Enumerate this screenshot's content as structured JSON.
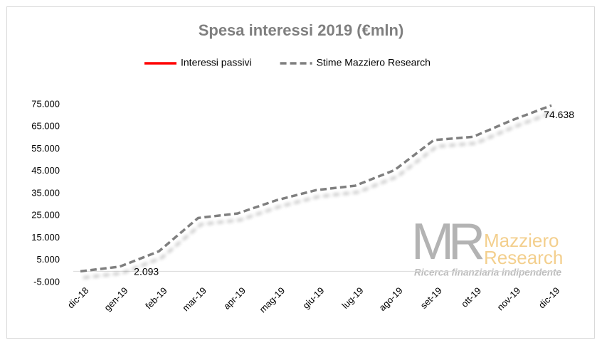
{
  "chart_data": {
    "type": "line",
    "title": "Spesa interessi 2019 (€mln)",
    "categories": [
      "dic-18",
      "gen-19",
      "feb-19",
      "mar-19",
      "apr-19",
      "mag-19",
      "giu-19",
      "lug-19",
      "ago-19",
      "set-19",
      "ott-19",
      "nov-19",
      "dic-19"
    ],
    "series": [
      {
        "name": "Interessi passivi",
        "color": "#ff0000",
        "dashed": false,
        "values": [
          null,
          null,
          null,
          null,
          null,
          null,
          null,
          null,
          null,
          null,
          null,
          null,
          null
        ]
      },
      {
        "name": "Stime Mazziero Research",
        "color": "#7f7f7f",
        "dashed": true,
        "values": [
          0,
          2093,
          9000,
          24000,
          26000,
          32000,
          36500,
          38500,
          45500,
          59000,
          60500,
          68000,
          74638
        ],
        "value_labels": [
          null,
          "2.093",
          null,
          null,
          null,
          null,
          null,
          null,
          null,
          null,
          null,
          null,
          "74.638"
        ]
      }
    ],
    "ylim": [
      -5000,
      75000
    ],
    "yticks": [
      {
        "value": -5000,
        "label": "-5.000"
      },
      {
        "value": 5000,
        "label": "5.000"
      },
      {
        "value": 15000,
        "label": "15.000"
      },
      {
        "value": 25000,
        "label": "25.000"
      },
      {
        "value": 35000,
        "label": "35.000"
      },
      {
        "value": 45000,
        "label": "45.000"
      },
      {
        "value": 55000,
        "label": "55.000"
      },
      {
        "value": 65000,
        "label": "65.000"
      },
      {
        "value": 75000,
        "label": "75.000"
      }
    ],
    "grid": false,
    "watermark": {
      "logo": "MR",
      "brand1": "Mazziero",
      "brand2": "Research",
      "tagline": "Ricerca finanziaria indipendente"
    }
  }
}
